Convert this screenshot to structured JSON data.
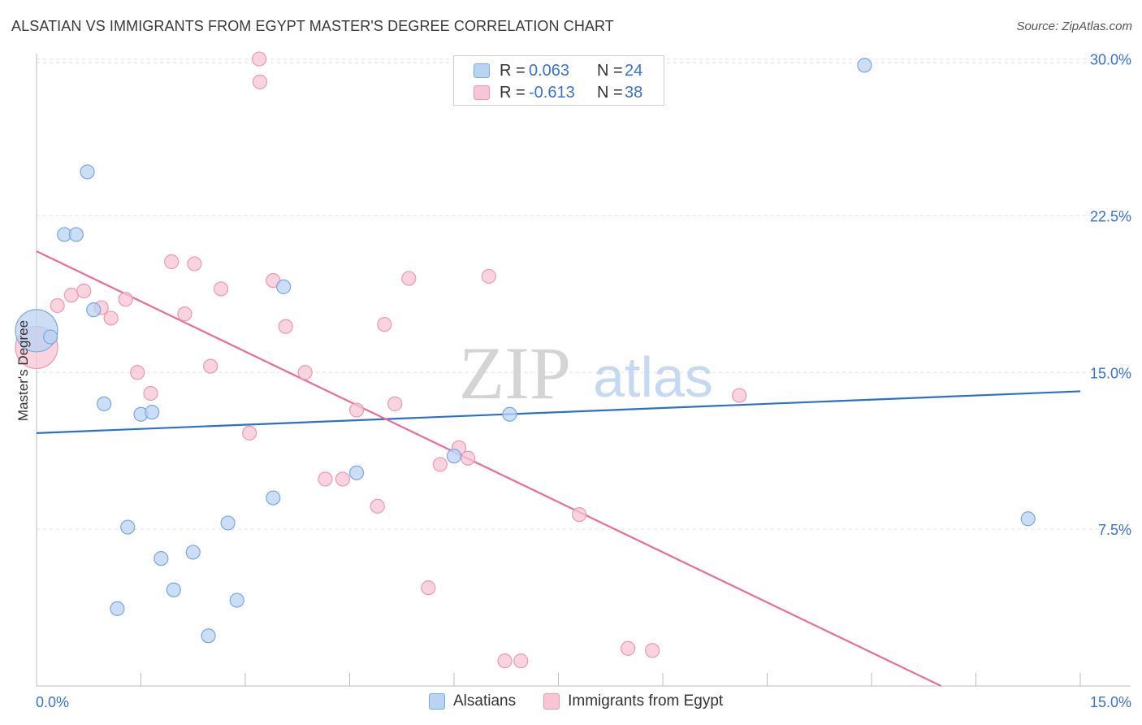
{
  "header": {
    "title": "ALSATIAN VS IMMIGRANTS FROM EGYPT MASTER'S DEGREE CORRELATION CHART",
    "source": "Source: ZipAtlas.com"
  },
  "legend_top": {
    "rows": [
      {
        "r_label": "R =",
        "r_value": "0.063",
        "n_label": "N =",
        "n_value": "24"
      },
      {
        "r_label": "R =",
        "r_value": "-0.613",
        "n_label": "N =",
        "n_value": "38"
      }
    ]
  },
  "legend_bottom": [
    "Alsatians",
    "Immigrants from Egypt"
  ],
  "watermark": {
    "zip": "ZIP",
    "atlas": "atlas"
  },
  "colors": {
    "blue_fill": "#b9d3f3",
    "blue_stroke": "#7aa7e0",
    "blue_line": "#2b6fcf",
    "pink_fill": "#f7c5d4",
    "pink_stroke": "#eb99b3",
    "pink_line": "#e4709a",
    "tick_text": "#3a73c9",
    "grid": "#e3e3e3"
  },
  "chart_data": {
    "type": "scatter",
    "title": "ALSATIAN VS IMMIGRANTS FROM EGYPT MASTER'S DEGREE CORRELATION CHART",
    "xlabel": "",
    "ylabel": "Master's Degree",
    "xlim": [
      0,
      15
    ],
    "ylim": [
      0,
      30.8
    ],
    "x_tick_labels": [
      "0.0%",
      "15.0%"
    ],
    "y_ticks": [
      7.5,
      15.0,
      22.5,
      30.0
    ],
    "y_tick_labels": [
      "7.5%",
      "15.0%",
      "22.5%",
      "30.0%"
    ],
    "grid": true,
    "series": [
      {
        "name": "Alsatians",
        "r": 0.063,
        "n": 24,
        "trend": [
          [
            0,
            12.1
          ],
          [
            15,
            14.1
          ]
        ],
        "points": [
          {
            "x": 0.0,
            "y": 17.0,
            "big": true
          },
          {
            "x": 0.2,
            "y": 16.7
          },
          {
            "x": 0.4,
            "y": 21.6
          },
          {
            "x": 0.57,
            "y": 21.6
          },
          {
            "x": 0.73,
            "y": 24.6
          },
          {
            "x": 0.82,
            "y": 18.0
          },
          {
            "x": 0.97,
            "y": 13.5
          },
          {
            "x": 1.16,
            "y": 3.7
          },
          {
            "x": 1.31,
            "y": 7.6
          },
          {
            "x": 1.5,
            "y": 13.0
          },
          {
            "x": 1.66,
            "y": 13.1
          },
          {
            "x": 1.79,
            "y": 6.1
          },
          {
            "x": 1.97,
            "y": 4.6
          },
          {
            "x": 2.25,
            "y": 6.4
          },
          {
            "x": 2.47,
            "y": 2.4
          },
          {
            "x": 2.75,
            "y": 7.8
          },
          {
            "x": 2.88,
            "y": 4.1
          },
          {
            "x": 3.4,
            "y": 9.0
          },
          {
            "x": 3.55,
            "y": 19.1
          },
          {
            "x": 4.6,
            "y": 10.2
          },
          {
            "x": 6.0,
            "y": 11.0
          },
          {
            "x": 6.8,
            "y": 13.0
          },
          {
            "x": 11.9,
            "y": 29.7
          },
          {
            "x": 14.25,
            "y": 8.0
          }
        ]
      },
      {
        "name": "Immigrants from Egypt",
        "r": -0.613,
        "n": 38,
        "trend": [
          [
            0,
            20.8
          ],
          [
            13.0,
            0
          ]
        ],
        "points": [
          {
            "x": 0.0,
            "y": 16.2,
            "big": true
          },
          {
            "x": 0.3,
            "y": 18.2
          },
          {
            "x": 0.5,
            "y": 18.7
          },
          {
            "x": 0.68,
            "y": 18.9
          },
          {
            "x": 0.93,
            "y": 18.1
          },
          {
            "x": 1.07,
            "y": 17.6
          },
          {
            "x": 1.28,
            "y": 18.5
          },
          {
            "x": 1.45,
            "y": 15.0
          },
          {
            "x": 1.64,
            "y": 14.0
          },
          {
            "x": 1.94,
            "y": 20.3
          },
          {
            "x": 2.13,
            "y": 17.8
          },
          {
            "x": 2.27,
            "y": 20.2
          },
          {
            "x": 2.5,
            "y": 15.3
          },
          {
            "x": 2.65,
            "y": 19.0
          },
          {
            "x": 3.06,
            "y": 12.1
          },
          {
            "x": 3.4,
            "y": 19.4
          },
          {
            "x": 3.58,
            "y": 17.2
          },
          {
            "x": 3.86,
            "y": 15.0
          },
          {
            "x": 3.2,
            "y": 30.0
          },
          {
            "x": 3.21,
            "y": 28.9
          },
          {
            "x": 4.15,
            "y": 9.9
          },
          {
            "x": 4.4,
            "y": 9.9
          },
          {
            "x": 4.6,
            "y": 13.2
          },
          {
            "x": 4.9,
            "y": 8.6
          },
          {
            "x": 5.0,
            "y": 17.3
          },
          {
            "x": 5.15,
            "y": 13.5
          },
          {
            "x": 5.35,
            "y": 19.5
          },
          {
            "x": 5.63,
            "y": 4.7
          },
          {
            "x": 5.8,
            "y": 10.6
          },
          {
            "x": 6.07,
            "y": 11.4
          },
          {
            "x": 6.2,
            "y": 10.9
          },
          {
            "x": 6.5,
            "y": 19.6
          },
          {
            "x": 6.73,
            "y": 1.2
          },
          {
            "x": 6.96,
            "y": 1.2
          },
          {
            "x": 7.8,
            "y": 8.2
          },
          {
            "x": 8.5,
            "y": 1.8
          },
          {
            "x": 8.85,
            "y": 1.7
          },
          {
            "x": 10.1,
            "y": 13.9
          }
        ]
      }
    ]
  }
}
